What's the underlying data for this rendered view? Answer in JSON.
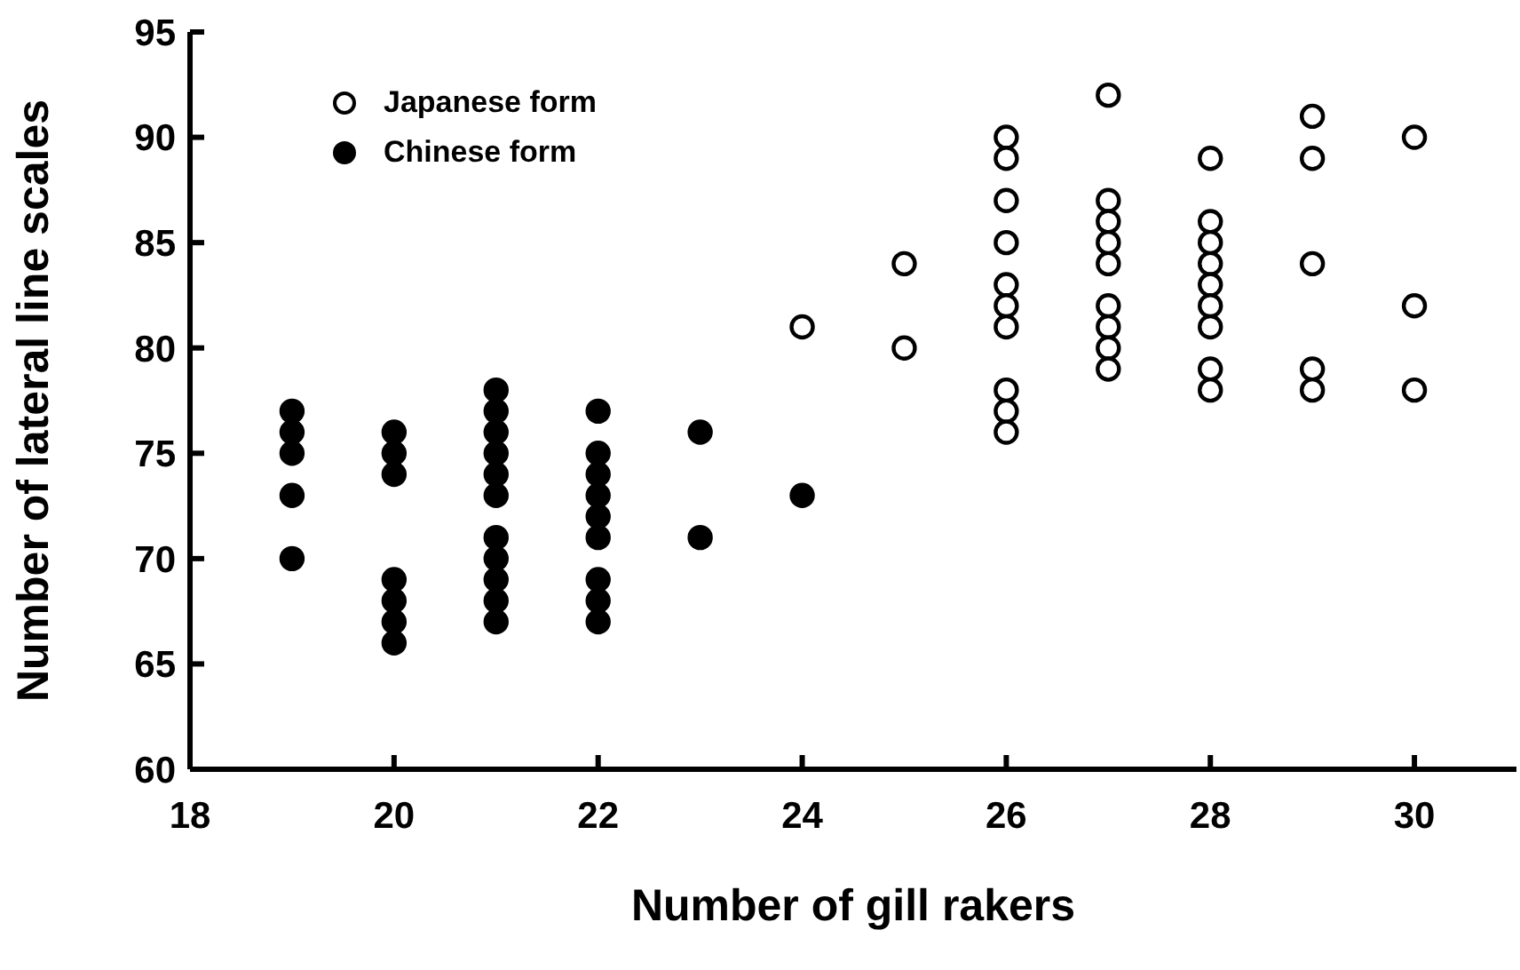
{
  "chart_data": {
    "type": "scatter",
    "xlabel": "Number of gill rakers",
    "ylabel": "Number of lateral line scales",
    "xlim": [
      18,
      31
    ],
    "xticks": [
      18,
      20,
      22,
      24,
      26,
      28,
      30
    ],
    "ylim": [
      60,
      95
    ],
    "yticks": [
      60,
      65,
      70,
      75,
      80,
      85,
      90,
      95
    ],
    "grid": false,
    "legend": "top left",
    "marker": "circle",
    "series": [
      {
        "name": "Japanese form",
        "color": "#ffffff",
        "x": [
          24,
          25,
          25,
          26,
          26,
          26,
          26,
          26,
          26,
          26,
          26,
          26,
          26,
          27,
          27,
          27,
          27,
          27,
          27,
          27,
          27,
          27,
          28,
          28,
          28,
          28,
          28,
          28,
          28,
          28,
          28,
          29,
          29,
          29,
          29,
          29,
          30,
          30,
          30
        ],
        "values": [
          81,
          84,
          80,
          90,
          89,
          87,
          85,
          83,
          82,
          81,
          78,
          77,
          76,
          92,
          87,
          86,
          85,
          84,
          82,
          81,
          80,
          79,
          89,
          86,
          85,
          84,
          83,
          82,
          81,
          79,
          78,
          91,
          89,
          84,
          79,
          78,
          90,
          82,
          78
        ]
      },
      {
        "name": "Chinese form",
        "color": "#000000",
        "x": [
          19,
          19,
          19,
          19,
          19,
          20,
          20,
          20,
          20,
          20,
          20,
          20,
          21,
          21,
          21,
          21,
          21,
          21,
          21,
          21,
          21,
          21,
          21,
          22,
          22,
          22,
          22,
          22,
          22,
          22,
          22,
          22,
          23,
          23,
          24
        ],
        "values": [
          77,
          76,
          75,
          73,
          70,
          76,
          75,
          74,
          69,
          68,
          67,
          66,
          78,
          77,
          76,
          75,
          74,
          73,
          71,
          70,
          69,
          68,
          67,
          77,
          75,
          74,
          73,
          72,
          71,
          69,
          68,
          67,
          76,
          71,
          73
        ]
      }
    ]
  }
}
